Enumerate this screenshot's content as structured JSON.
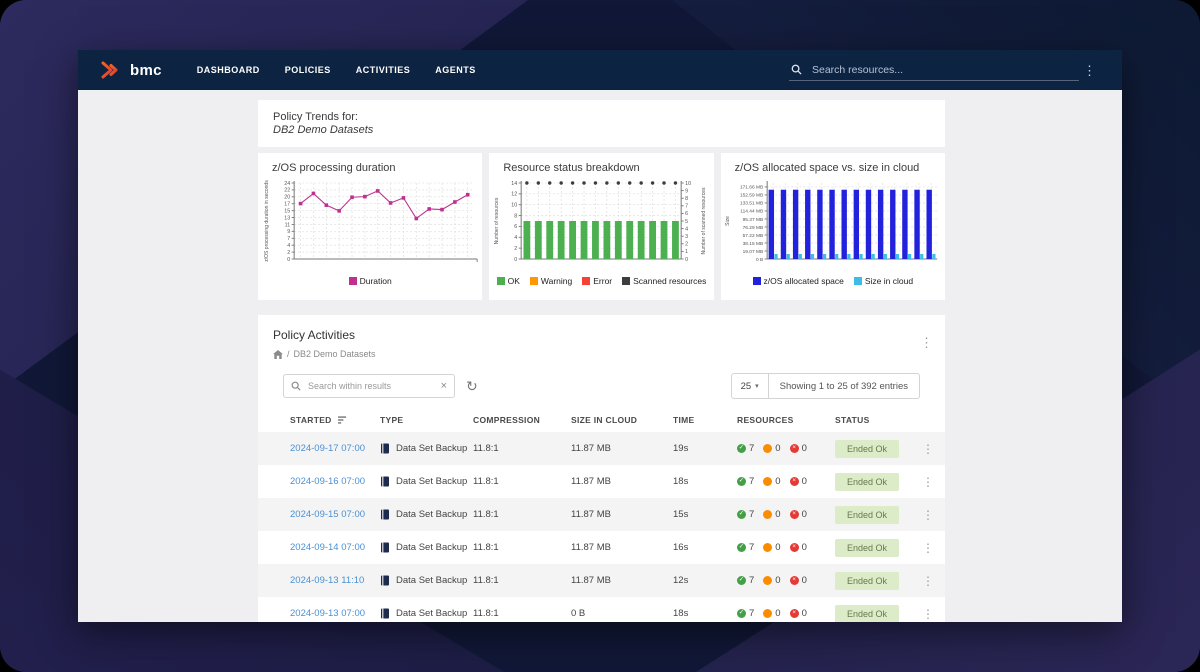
{
  "nav": {
    "brand": "bmc",
    "items": [
      "DASHBOARD",
      "POLICIES",
      "ACTIVITIES",
      "AGENTS"
    ],
    "search_placeholder": "Search resources..."
  },
  "trends": {
    "title_line1": "Policy Trends for:",
    "title_line2": "DB2 Demo Datasets"
  },
  "chart_data": [
    {
      "type": "line",
      "title": "z/OS processing duration",
      "ylabel": "z/OS processing duration in seconds",
      "ytick_labels": [
        0,
        2,
        4,
        7,
        9,
        11,
        13,
        15,
        17,
        20,
        22,
        24
      ],
      "ylim": [
        0,
        24
      ],
      "values": [
        17.5,
        20.7,
        17,
        15.2,
        19.5,
        19.7,
        21.5,
        17.7,
        19.3,
        12.8,
        15.8,
        15.6,
        18,
        20.3
      ],
      "line_color": "#bf3191",
      "grid": true,
      "legend": [
        {
          "label": "Duration",
          "color": "#bf3191"
        }
      ],
      "legend_position": "bottom"
    },
    {
      "type": "bar",
      "title": "Resource status breakdown",
      "ylabel_left": "Number of resources",
      "ylabel_right": "Number of scanned resources",
      "yticks_left": [
        0,
        2,
        4,
        6,
        8,
        10,
        12,
        14
      ],
      "yticks_right": [
        0,
        1,
        2,
        3,
        4,
        5,
        6,
        7,
        8,
        9,
        10
      ],
      "ylim_left": [
        0,
        14
      ],
      "ylim_right": [
        0,
        10
      ],
      "bar_values": [
        7,
        7,
        7,
        7,
        7,
        7,
        7,
        7,
        7,
        7,
        7,
        7,
        7,
        7
      ],
      "bar_color": "#4caf50",
      "scanned_values": [
        10,
        10,
        10,
        10,
        10,
        10,
        10,
        10,
        10,
        10,
        10,
        10,
        10,
        10
      ],
      "point_color": "#3d3d3d",
      "grid": true,
      "legend": [
        {
          "label": "OK",
          "color": "#4caf50"
        },
        {
          "label": "Warning",
          "color": "#ff9800"
        },
        {
          "label": "Error",
          "color": "#f44336"
        },
        {
          "label": "Scanned resources",
          "color": "#3d3d3d"
        }
      ],
      "legend_position": "bottom"
    },
    {
      "type": "grouped-bar",
      "title": "z/OS allocated space vs. size in cloud",
      "ylabel": "Size",
      "ytick_labels": [
        "0 B",
        "19.07 MB",
        "38.15 MB",
        "57.22 MB",
        "76.29 MB",
        "95.37 MB",
        "114.44 MB",
        "133.51 MB",
        "152.59 MB",
        "171.66 MB"
      ],
      "ytick_values_mb": [
        0,
        19.07,
        38.15,
        57.22,
        76.29,
        95.37,
        114.44,
        133.51,
        152.59,
        171.66
      ],
      "ylim_mb": [
        0,
        181
      ],
      "grid": true,
      "series": [
        {
          "name": "z/OS allocated space",
          "color": "#2222dd",
          "values": [
            165,
            165,
            165,
            165,
            165,
            165,
            165,
            165,
            165,
            165,
            165,
            165,
            165,
            165
          ]
        },
        {
          "name": "Size in cloud",
          "color": "#3bbde8",
          "values": [
            11.87,
            11.87,
            11.87,
            11.87,
            11.87,
            11.87,
            11.87,
            11.87,
            11.87,
            11.87,
            11.87,
            11.87,
            11.87,
            11.87
          ]
        }
      ],
      "legend": [
        {
          "label": "z/OS allocated space",
          "color": "#2222dd"
        },
        {
          "label": "Size in cloud",
          "color": "#3bbde8"
        }
      ],
      "legend_position": "bottom"
    }
  ],
  "activities": {
    "title": "Policy Activities",
    "breadcrumb_sep": "/",
    "breadcrumb": "DB2 Demo Datasets",
    "search_placeholder": "Search within results",
    "page_size": "25",
    "showing": "Showing 1 to 25 of 392 entries",
    "columns": [
      "STARTED",
      "TYPE",
      "COMPRESSION",
      "SIZE IN CLOUD",
      "TIME",
      "RESOURCES",
      "STATUS"
    ],
    "rows": [
      {
        "started": "2024-09-17 07:00",
        "type": "Data Set Backup",
        "compression": "11.8:1",
        "size": "11.87 MB",
        "time": "19s",
        "ok": "7",
        "warning": "0",
        "error": "0",
        "status": "Ended Ok"
      },
      {
        "started": "2024-09-16 07:00",
        "type": "Data Set Backup",
        "compression": "11.8:1",
        "size": "11.87 MB",
        "time": "18s",
        "ok": "7",
        "warning": "0",
        "error": "0",
        "status": "Ended Ok"
      },
      {
        "started": "2024-09-15 07:00",
        "type": "Data Set Backup",
        "compression": "11.8:1",
        "size": "11.87 MB",
        "time": "15s",
        "ok": "7",
        "warning": "0",
        "error": "0",
        "status": "Ended Ok"
      },
      {
        "started": "2024-09-14 07:00",
        "type": "Data Set Backup",
        "compression": "11.8:1",
        "size": "11.87 MB",
        "time": "16s",
        "ok": "7",
        "warning": "0",
        "error": "0",
        "status": "Ended Ok"
      },
      {
        "started": "2024-09-13 11:10",
        "type": "Data Set Backup",
        "compression": "11.8:1",
        "size": "11.87 MB",
        "time": "12s",
        "ok": "7",
        "warning": "0",
        "error": "0",
        "status": "Ended Ok"
      },
      {
        "started": "2024-09-13 07:00",
        "type": "Data Set Backup",
        "compression": "11.8:1",
        "size": "0 B",
        "time": "18s",
        "ok": "7",
        "warning": "0",
        "error": "0",
        "status": "Ended Ok"
      }
    ]
  },
  "colors": {
    "navbar": "#0d2342",
    "accent_orange": "#f05a28",
    "link_blue": "#4a90d2",
    "status_ok_bg": "#dcebc8"
  }
}
